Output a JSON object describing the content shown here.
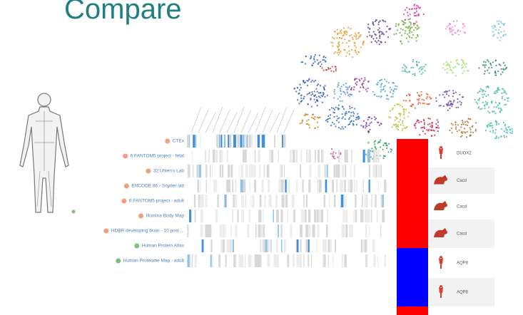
{
  "header": {
    "title": "Compare"
  },
  "heatmap": {
    "rows": [
      {
        "label": "CTEx"
      },
      {
        "label": "6 FANTOM5 project - fetal"
      },
      {
        "label": "32 Uhlen's Lab"
      },
      {
        "label": "ENCODE 86 - Snyder lab"
      },
      {
        "label": "6 FANTOM5 project - adult"
      },
      {
        "label": "Illumina Body Map"
      },
      {
        "label": "HDBR developing brain - 10 post ..."
      },
      {
        "label": "Human Protein Atlas"
      },
      {
        "label": "Human Proteome Map - adult"
      }
    ]
  },
  "panel": {
    "rows": [
      {
        "label": "DUOX2"
      },
      {
        "label": "Cacd"
      },
      {
        "label": "Cacd"
      },
      {
        "label": "Cacd"
      },
      {
        "label": "AQP8"
      },
      {
        "label": "AQP8"
      }
    ]
  }
}
